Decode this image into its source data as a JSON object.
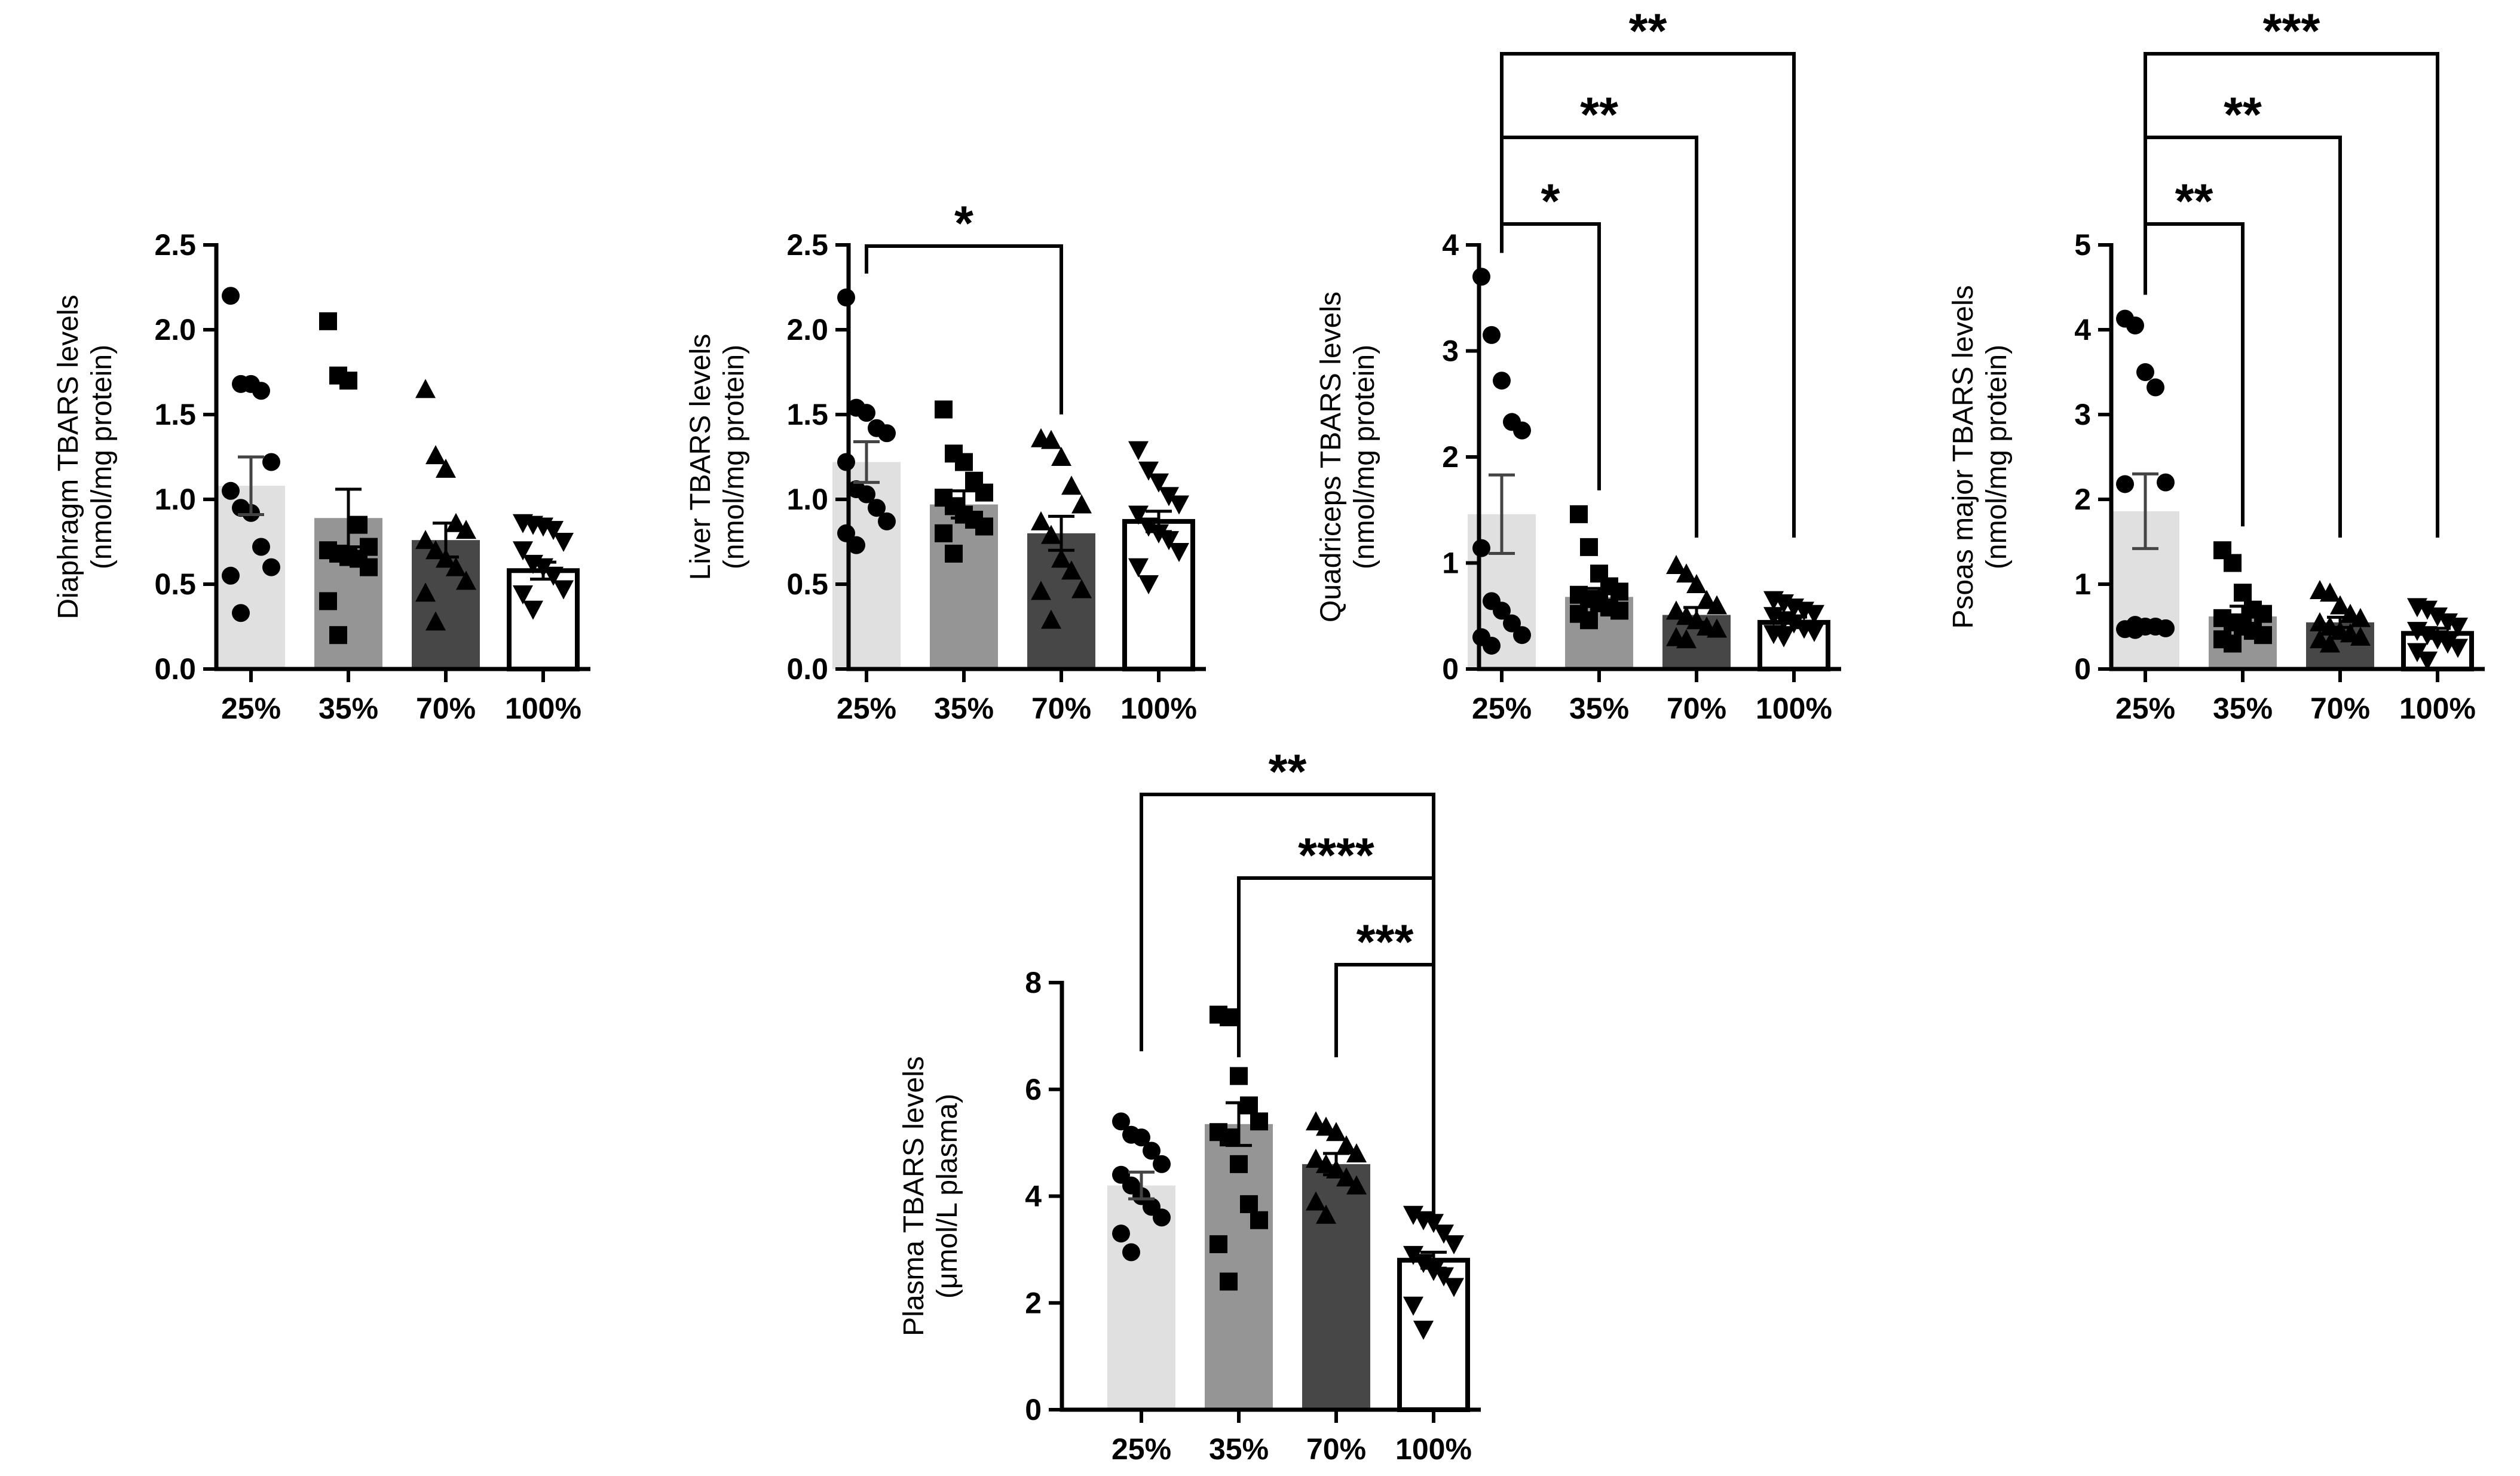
{
  "chart_data": [
    {
      "id": "diaphragm",
      "type": "bar",
      "ylabel": [
        "Diaphragm TBARS levels",
        "(nmol/mg protein)"
      ],
      "categories": [
        "25%",
        "35%",
        "70%",
        "100%"
      ],
      "ylim": [
        0,
        2.5
      ],
      "yticks": [
        0.0,
        0.5,
        1.0,
        1.5,
        2.0,
        2.5
      ],
      "ytick_labels": [
        "0.0",
        "0.5",
        "1.0",
        "1.5",
        "2.0",
        "2.5"
      ],
      "means": [
        1.08,
        0.89,
        0.76,
        0.58
      ],
      "sem": [
        0.17,
        0.17,
        0.1,
        0.05
      ],
      "points": [
        [
          2.2,
          1.68,
          1.68,
          1.64,
          1.22,
          1.05,
          0.95,
          0.92,
          0.72,
          0.6,
          0.55,
          0.33
        ],
        [
          2.05,
          1.73,
          1.7,
          0.85,
          0.72,
          0.7,
          0.68,
          0.66,
          0.65,
          0.6,
          0.4,
          0.2
        ],
        [
          1.65,
          1.26,
          1.18,
          0.86,
          0.82,
          0.76,
          0.7,
          0.65,
          0.6,
          0.52,
          0.45,
          0.28
        ],
        [
          0.86,
          0.85,
          0.84,
          0.82,
          0.75,
          0.7,
          0.62,
          0.6,
          0.55,
          0.47,
          0.44,
          0.35
        ]
      ],
      "significance": []
    },
    {
      "id": "liver",
      "type": "bar",
      "ylabel": [
        "Liver TBARS levels",
        "(nmol/mg protein)"
      ],
      "categories": [
        "25%",
        "35%",
        "70%",
        "100%"
      ],
      "ylim": [
        0,
        2.5
      ],
      "yticks": [
        0.0,
        0.5,
        1.0,
        1.5,
        2.0,
        2.5
      ],
      "ytick_labels": [
        "0.0",
        "0.5",
        "1.0",
        "1.5",
        "2.0",
        "2.5"
      ],
      "means": [
        1.22,
        0.97,
        0.8,
        0.87
      ],
      "sem": [
        0.12,
        0.08,
        0.1,
        0.06
      ],
      "points": [
        [
          2.19,
          1.54,
          1.51,
          1.42,
          1.39,
          1.22,
          1.06,
          1.03,
          0.95,
          0.87,
          0.8,
          0.73
        ],
        [
          1.53,
          1.27,
          1.22,
          1.11,
          1.04,
          1.01,
          0.96,
          0.91,
          0.88,
          0.84,
          0.8,
          0.68
        ],
        [
          1.36,
          1.35,
          1.25,
          1.08,
          0.97,
          0.87,
          0.79,
          0.65,
          0.58,
          0.47,
          0.46,
          0.29
        ],
        [
          1.29,
          1.17,
          1.1,
          1.02,
          0.97,
          0.91,
          0.84,
          0.8,
          0.76,
          0.69,
          0.6,
          0.5
        ]
      ],
      "significance": [
        {
          "from": 0,
          "to": 2,
          "label": "*"
        }
      ]
    },
    {
      "id": "quadriceps",
      "type": "bar",
      "ylabel": [
        "Quadriceps TBARS levels",
        "(nmol/mg protein)"
      ],
      "categories": [
        "25%",
        "35%",
        "70%",
        "100%"
      ],
      "ylim": [
        0,
        4
      ],
      "yticks": [
        0,
        1,
        2,
        3,
        4
      ],
      "ytick_labels": [
        "0",
        "1",
        "2",
        "3",
        "4"
      ],
      "means": [
        1.46,
        0.68,
        0.51,
        0.44
      ],
      "sem": [
        0.37,
        0.08,
        0.07,
        0.05
      ],
      "points": [
        [
          3.7,
          3.15,
          2.72,
          2.33,
          2.25,
          1.14,
          0.64,
          0.55,
          0.43,
          0.32,
          0.3,
          0.22
        ],
        [
          1.46,
          1.15,
          0.9,
          0.78,
          0.73,
          0.7,
          0.66,
          0.62,
          0.58,
          0.55,
          0.52,
          0.46
        ],
        [
          0.98,
          0.9,
          0.8,
          0.65,
          0.6,
          0.55,
          0.5,
          0.46,
          0.4,
          0.38,
          0.3,
          0.28
        ],
        [
          0.65,
          0.62,
          0.58,
          0.55,
          0.52,
          0.5,
          0.46,
          0.43,
          0.38,
          0.35,
          0.33,
          0.3
        ]
      ],
      "significance": [
        {
          "from": 0,
          "to": 1,
          "label": "*"
        },
        {
          "from": 0,
          "to": 2,
          "label": "**"
        },
        {
          "from": 0,
          "to": 3,
          "label": "**"
        }
      ]
    },
    {
      "id": "psoas",
      "type": "bar",
      "ylabel": [
        "Psoas major TBARS levels",
        "(nmol/mg protein)"
      ],
      "categories": [
        "25%",
        "35%",
        "70%",
        "100%"
      ],
      "ylim": [
        0,
        5
      ],
      "yticks": [
        0,
        1,
        2,
        3,
        4,
        5
      ],
      "ytick_labels": [
        "0",
        "1",
        "2",
        "3",
        "4",
        "5"
      ],
      "means": [
        1.86,
        0.62,
        0.55,
        0.42
      ],
      "sem": [
        0.44,
        0.12,
        0.06,
        0.06
      ],
      "points": [
        [
          4.13,
          4.05,
          3.5,
          3.32,
          2.2,
          2.18,
          0.52,
          0.5,
          0.5,
          0.48,
          0.47,
          0.46
        ],
        [
          1.4,
          1.25,
          0.9,
          0.7,
          0.65,
          0.6,
          0.55,
          0.5,
          0.45,
          0.4,
          0.35,
          0.3
        ],
        [
          0.93,
          0.9,
          0.75,
          0.65,
          0.6,
          0.55,
          0.5,
          0.45,
          0.42,
          0.38,
          0.35,
          0.3
        ],
        [
          0.73,
          0.7,
          0.62,
          0.55,
          0.5,
          0.45,
          0.4,
          0.35,
          0.3,
          0.25,
          0.2,
          0.1
        ]
      ],
      "significance": [
        {
          "from": 0,
          "to": 1,
          "label": "**"
        },
        {
          "from": 0,
          "to": 2,
          "label": "**"
        },
        {
          "from": 0,
          "to": 3,
          "label": "***"
        }
      ]
    },
    {
      "id": "plasma",
      "type": "bar",
      "ylabel": [
        "Plasma TBARS levels",
        "(μmol/L plasma)"
      ],
      "categories": [
        "25%",
        "35%",
        "70%",
        "100%"
      ],
      "ylim": [
        0,
        8
      ],
      "yticks": [
        0,
        2,
        4,
        6,
        8
      ],
      "ytick_labels": [
        "0",
        "2",
        "4",
        "6",
        "8"
      ],
      "means": [
        4.2,
        5.35,
        4.6,
        2.8
      ],
      "sem": [
        0.25,
        0.4,
        0.2,
        0.15
      ],
      "points": [
        [
          5.4,
          5.15,
          5.1,
          4.85,
          4.6,
          4.4,
          4.2,
          4.0,
          3.8,
          3.6,
          3.3,
          2.95
        ],
        [
          7.4,
          7.35,
          6.25,
          5.7,
          5.4,
          5.2,
          5.1,
          4.6,
          3.85,
          3.55,
          3.1,
          2.4
        ],
        [
          5.4,
          5.3,
          5.2,
          4.95,
          4.8,
          4.7,
          4.6,
          4.5,
          4.35,
          4.2,
          3.9,
          3.65
        ],
        [
          3.65,
          3.55,
          3.5,
          3.3,
          3.1,
          2.9,
          2.75,
          2.6,
          2.5,
          2.3,
          1.95,
          1.5
        ]
      ],
      "significance": [
        {
          "from": 2,
          "to": 3,
          "label": "***"
        },
        {
          "from": 1,
          "to": 3,
          "label": "****"
        },
        {
          "from": 0,
          "to": 3,
          "label": "**"
        }
      ]
    }
  ],
  "style": {
    "bar_fills": [
      "#e0e0e0",
      "#959595",
      "#474747",
      "#ffffff"
    ],
    "marker_shapes": [
      "circle",
      "square",
      "triangle-up",
      "triangle-down"
    ],
    "ink": "#000000",
    "sem_color_light": "#444444"
  }
}
